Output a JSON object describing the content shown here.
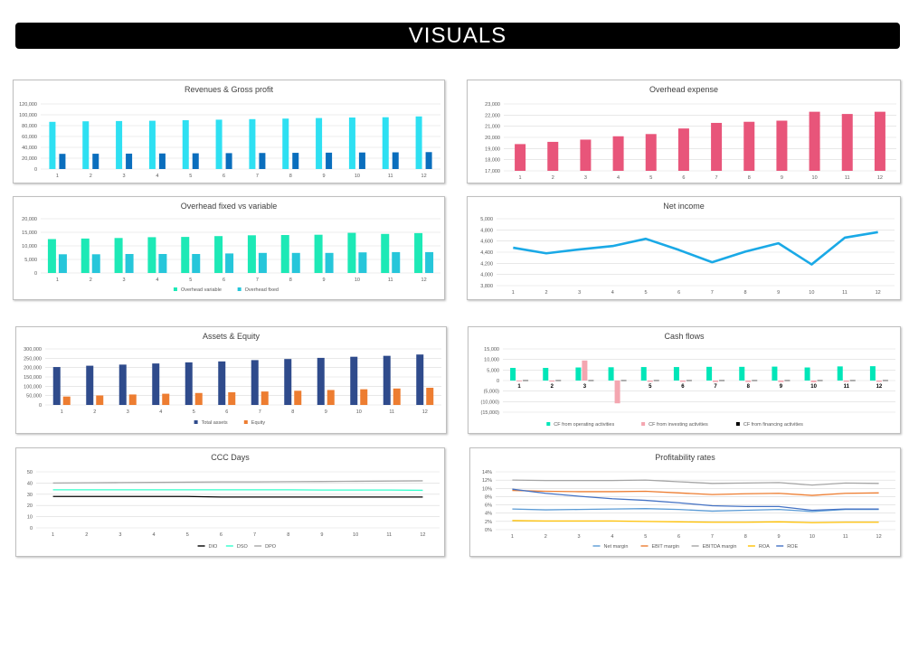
{
  "page": {
    "title": "VISUALS"
  },
  "chart_data": [
    {
      "id": "revenues",
      "type": "bar",
      "title": "Revenues & Gross profit",
      "categories": [
        "1",
        "2",
        "3",
        "4",
        "5",
        "6",
        "7",
        "8",
        "9",
        "10",
        "11",
        "12"
      ],
      "series": [
        {
          "name": "Revenues",
          "color": "#2ee0f2",
          "values": [
            87000,
            88000,
            88500,
            89000,
            90000,
            91000,
            92000,
            93000,
            94000,
            95000,
            95500,
            97000
          ]
        },
        {
          "name": "Gross profit",
          "color": "#0a6ebd",
          "values": [
            28000,
            28200,
            28400,
            28700,
            29000,
            29300,
            29600,
            29900,
            30200,
            30500,
            30800,
            31200
          ]
        }
      ],
      "ylim": [
        0,
        120000
      ],
      "yticks": [
        0,
        20000,
        40000,
        60000,
        80000,
        100000,
        120000
      ],
      "ytick_labels": [
        "0",
        "20,000",
        "40,000",
        "60,000",
        "80,000",
        "100,000",
        "120,000"
      ],
      "legend": []
    },
    {
      "id": "overhead",
      "type": "bar",
      "title": "Overhead expense",
      "categories": [
        "1",
        "2",
        "3",
        "4",
        "5",
        "6",
        "7",
        "8",
        "9",
        "10",
        "11",
        "12"
      ],
      "series": [
        {
          "name": "Overhead expense",
          "color": "#e8557a",
          "values": [
            19400,
            19600,
            19800,
            20100,
            20300,
            20800,
            21300,
            21400,
            21500,
            22300,
            22100,
            22300
          ]
        }
      ],
      "ylim": [
        17000,
        23000
      ],
      "yticks": [
        17000,
        18000,
        19000,
        20000,
        21000,
        22000,
        23000
      ],
      "ytick_labels": [
        "17,000",
        "18,000",
        "19,000",
        "20,000",
        "21,000",
        "22,000",
        "23,000"
      ],
      "legend": []
    },
    {
      "id": "fixedvar",
      "type": "bar",
      "title": "Overhead fixed vs variable",
      "categories": [
        "1",
        "2",
        "3",
        "4",
        "5",
        "6",
        "7",
        "8",
        "9",
        "10",
        "11",
        "12"
      ],
      "series": [
        {
          "name": "Overhead variable",
          "color": "#1de9b6",
          "values": [
            12500,
            12700,
            12900,
            13200,
            13300,
            13600,
            13900,
            14000,
            14100,
            14800,
            14400,
            14700
          ]
        },
        {
          "name": "Overhead fixed",
          "color": "#26c6da",
          "values": [
            6900,
            6900,
            7000,
            7000,
            7000,
            7200,
            7400,
            7400,
            7400,
            7600,
            7700,
            7700
          ]
        }
      ],
      "ylim": [
        0,
        20000
      ],
      "yticks": [
        0,
        5000,
        10000,
        15000,
        20000
      ],
      "ytick_labels": [
        "0",
        "5,000",
        "10,000",
        "15,000",
        "20,000"
      ],
      "legend": [
        "Overhead variable",
        "Overhead fixed"
      ]
    },
    {
      "id": "netincome",
      "type": "line",
      "title": "Net income",
      "categories": [
        "1",
        "2",
        "3",
        "4",
        "5",
        "6",
        "7",
        "8",
        "9",
        "10",
        "11",
        "12"
      ],
      "series": [
        {
          "name": "Net income",
          "color": "#1aa9e6",
          "values": [
            4480,
            4380,
            4450,
            4510,
            4640,
            4440,
            4220,
            4410,
            4560,
            4180,
            4660,
            4760
          ]
        }
      ],
      "ylim": [
        3800,
        5000
      ],
      "yticks": [
        3800,
        4000,
        4200,
        4400,
        4600,
        4800,
        5000
      ],
      "ytick_labels": [
        "3,800",
        "4,000",
        "4,200",
        "4,400",
        "4,600",
        "4,800",
        "5,000"
      ],
      "legend": []
    },
    {
      "id": "assets",
      "type": "bar",
      "title": "Assets & Equity",
      "categories": [
        "1",
        "2",
        "3",
        "4",
        "5",
        "6",
        "7",
        "8",
        "9",
        "10",
        "11",
        "12"
      ],
      "series": [
        {
          "name": "Total assets",
          "color": "#2f4b8c",
          "values": [
            203000,
            210000,
            216000,
            222000,
            228000,
            233000,
            240000,
            246000,
            252000,
            258000,
            263000,
            270000
          ]
        },
        {
          "name": "Equity",
          "color": "#ed7d31",
          "values": [
            45000,
            51000,
            56000,
            60000,
            64000,
            68000,
            72000,
            76000,
            80000,
            84000,
            88000,
            92000
          ]
        }
      ],
      "ylim": [
        0,
        300000
      ],
      "yticks": [
        0,
        50000,
        100000,
        150000,
        200000,
        250000,
        300000
      ],
      "ytick_labels": [
        "0",
        "50,000",
        "100,000",
        "150,000",
        "200,000",
        "250,000",
        "300,000"
      ],
      "legend": [
        "Total assets",
        "Equity"
      ]
    },
    {
      "id": "cashflows",
      "type": "bar",
      "title": "Cash flows",
      "categories": [
        "1",
        "2",
        "3",
        "4",
        "5",
        "6",
        "7",
        "8",
        "9",
        "10",
        "11",
        "12"
      ],
      "series": [
        {
          "name": "CF from operating activities",
          "color": "#00e6b8",
          "values": [
            6000,
            6000,
            6200,
            6300,
            6400,
            6400,
            6500,
            6500,
            6600,
            6200,
            6700,
            6800
          ]
        },
        {
          "name": "CF from investing activities",
          "color": "#f4a6b0",
          "values": [
            -400,
            -500,
            9500,
            -10800,
            -600,
            -600,
            -700,
            -700,
            -700,
            -800,
            -600,
            -600
          ]
        },
        {
          "name": "CF from financing activities",
          "color": "#000000",
          "values": [
            0,
            0,
            0,
            0,
            0,
            0,
            0,
            0,
            0,
            0,
            0,
            0
          ]
        }
      ],
      "ylim": [
        -15000,
        15000
      ],
      "yticks": [
        -15000,
        -10000,
        -5000,
        0,
        5000,
        10000,
        15000
      ],
      "ytick_labels": [
        "(15,000)",
        "(10,000)",
        "(5,000)",
        "0",
        "5,000",
        "10,000",
        "15,000"
      ],
      "legend": [
        "CF from operating activities",
        "CF from investing activities",
        "CF from financing activities"
      ]
    },
    {
      "id": "ccc",
      "type": "line",
      "title": "CCC Days",
      "categories": [
        "1",
        "2",
        "3",
        "4",
        "5",
        "6",
        "7",
        "8",
        "9",
        "10",
        "11",
        "12"
      ],
      "series": [
        {
          "name": "DIO",
          "color": "#000000",
          "values": [
            28,
            28,
            28,
            28,
            28,
            27.5,
            27.5,
            27.5,
            27.5,
            27.5,
            27.5,
            27.5
          ]
        },
        {
          "name": "DSO",
          "color": "#33ffcc",
          "values": [
            34,
            34,
            34,
            34,
            34,
            34,
            34,
            34,
            33.8,
            33.8,
            33.8,
            33.5
          ]
        },
        {
          "name": "DPO",
          "color": "#a6a6a6",
          "values": [
            40,
            40.2,
            40.4,
            40.6,
            40.8,
            41,
            41,
            41.2,
            41.4,
            41.6,
            41.8,
            42
          ]
        }
      ],
      "ylim": [
        0,
        50
      ],
      "yticks": [
        0,
        10,
        20,
        30,
        40,
        50
      ],
      "ytick_labels": [
        "0",
        "10",
        "20",
        "30",
        "40",
        "50"
      ],
      "legend": [
        "DIO",
        "DSO",
        "DPO"
      ]
    },
    {
      "id": "profitability",
      "type": "line",
      "title": "Profitability rates",
      "categories": [
        "1",
        "2",
        "3",
        "4",
        "5",
        "6",
        "7",
        "8",
        "9",
        "10",
        "11",
        "12"
      ],
      "series": [
        {
          "name": "Net margin",
          "color": "#5b9bd5",
          "values": [
            0.05,
            0.048,
            0.049,
            0.05,
            0.051,
            0.049,
            0.045,
            0.047,
            0.049,
            0.044,
            0.049,
            0.049
          ]
        },
        {
          "name": "EBIT margin",
          "color": "#ed7d31",
          "values": [
            0.095,
            0.093,
            0.092,
            0.092,
            0.093,
            0.089,
            0.085,
            0.087,
            0.088,
            0.083,
            0.088,
            0.089
          ]
        },
        {
          "name": "EBITDA margin",
          "color": "#a5a5a5",
          "values": [
            0.12,
            0.119,
            0.119,
            0.119,
            0.12,
            0.116,
            0.112,
            0.113,
            0.114,
            0.108,
            0.113,
            0.112
          ]
        },
        {
          "name": "ROA",
          "color": "#ffc000",
          "values": [
            0.022,
            0.021,
            0.021,
            0.021,
            0.02,
            0.019,
            0.018,
            0.018,
            0.019,
            0.017,
            0.018,
            0.018
          ]
        },
        {
          "name": "ROE",
          "color": "#4472c4",
          "values": [
            0.098,
            0.088,
            0.081,
            0.075,
            0.071,
            0.065,
            0.058,
            0.056,
            0.056,
            0.047,
            0.05,
            0.05
          ]
        }
      ],
      "ylim": [
        0,
        0.14
      ],
      "yticks": [
        0,
        0.02,
        0.04,
        0.06,
        0.08,
        0.1,
        0.12,
        0.14
      ],
      "ytick_labels": [
        "0%",
        "2%",
        "4%",
        "6%",
        "8%",
        "10%",
        "12%",
        "14%"
      ],
      "legend": [
        "Net margin",
        "EBIT margin",
        "EBITDA margin",
        "ROA",
        "ROE"
      ]
    }
  ]
}
